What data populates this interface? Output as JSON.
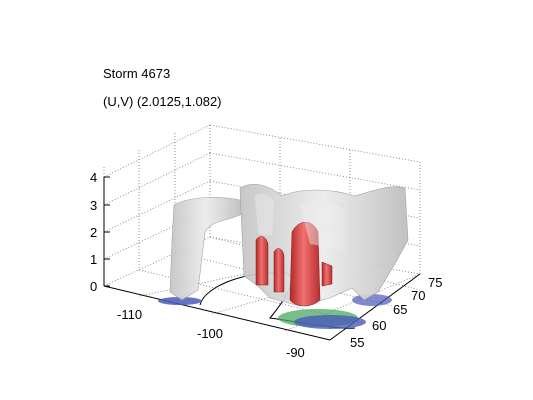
{
  "figure": {
    "title_line1": "Storm 4673",
    "title_line2": "(U,V) (2.0125,1.082)"
  },
  "axes": {
    "z_ticks": [
      "0",
      "1",
      "2",
      "3",
      "4"
    ],
    "x_ticks": [
      "-110",
      "-100",
      "-90"
    ],
    "y_ticks": [
      "55",
      "60",
      "65",
      "70",
      "75"
    ],
    "grid": true
  },
  "colors": {
    "background": "#ffffff",
    "storm_surface": "#d8d8d8",
    "core_surface": "#d84040",
    "base_blue": "#4a5ab8",
    "base_green": "#4aa860",
    "grid": "#777777"
  }
}
